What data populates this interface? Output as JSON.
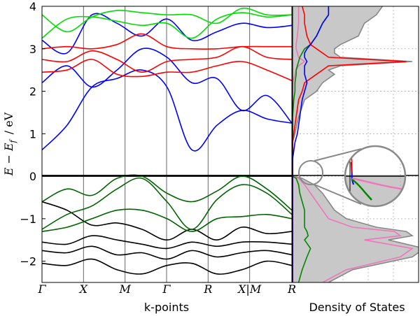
{
  "chart_data": [
    {
      "type": "line",
      "subtype": "band-structure",
      "xlabel": "k-points",
      "ylabel_main": "E − E",
      "ylabel_sub": "f",
      "ylabel_unit": "/  eV",
      "ylim": [
        -2.5,
        4
      ],
      "yticks": [
        -2,
        -1,
        0,
        1,
        2,
        3,
        4
      ],
      "ytick_labels": [
        "−2",
        "−1",
        "0",
        "1",
        "2",
        "3",
        "4"
      ],
      "kpoint_labels": [
        "Γ",
        "X",
        "M",
        "Γ",
        "R",
        "X|M",
        "R"
      ],
      "kpoint_positions": [
        0,
        0.57,
        1.14,
        1.71,
        2.28,
        2.85,
        3.43
      ],
      "series": [
        {
          "name": "conduction-blue",
          "color": "#0000ff",
          "bands": [
            [
              0.62,
              1.2,
              2.1,
              2.3,
              2.5,
              2.1,
              0.62,
              1.2,
              1.55,
              1.35,
              1.25
            ],
            [
              2.2,
              2.6,
              2.1,
              2.5,
              3.0,
              2.8,
              2.2,
              2.3,
              1.55,
              1.9,
              1.25
            ],
            [
              3.2,
              2.9,
              3.8,
              3.6,
              3.3,
              3.7,
              3.2,
              3.4,
              3.6,
              3.5,
              3.55
            ]
          ]
        },
        {
          "name": "conduction-red",
          "color": "#ff0000",
          "bands": [
            [
              2.45,
              2.5,
              2.75,
              2.4,
              2.35,
              2.45,
              2.45,
              2.6,
              2.7,
              2.5,
              2.25
            ],
            [
              2.75,
              2.7,
              2.95,
              2.75,
              2.45,
              2.7,
              2.75,
              2.8,
              3.05,
              2.8,
              2.75
            ],
            [
              3.0,
              3.05,
              3.0,
              3.1,
              3.35,
              3.05,
              3.0,
              3.0,
              3.05,
              3.05,
              3.05
            ]
          ]
        },
        {
          "name": "conduction-green",
          "color": "#00dd00",
          "bands": [
            [
              3.25,
              3.7,
              3.75,
              3.65,
              3.55,
              3.6,
              3.25,
              3.7,
              3.85,
              3.75,
              3.8
            ],
            [
              3.8,
              3.4,
              3.75,
              3.9,
              3.85,
              3.8,
              3.8,
              3.6,
              3.95,
              3.8,
              3.8
            ]
          ]
        },
        {
          "name": "valence-black",
          "color": "#000000",
          "bands": [
            [
              0.0,
              0.0,
              0.0,
              0.0,
              0.0,
              0.0,
              0.0,
              0.0,
              0.0,
              0.0,
              0.0
            ],
            [
              -0.6,
              -0.8,
              -1.15,
              -1.1,
              -1.25,
              -1.5,
              -1.25,
              -1.5,
              -1.2,
              -1.35,
              -1.3
            ],
            [
              -1.55,
              -1.6,
              -1.4,
              -1.5,
              -1.6,
              -1.7,
              -1.55,
              -1.65,
              -1.55,
              -1.55,
              -1.6
            ],
            [
              -1.75,
              -1.8,
              -1.65,
              -1.85,
              -1.8,
              -1.95,
              -1.75,
              -1.9,
              -1.8,
              -1.75,
              -1.85
            ],
            [
              -2.05,
              -2.1,
              -1.95,
              -2.2,
              -2.3,
              -2.1,
              -2.05,
              -2.3,
              -2.2,
              -2.0,
              -2.1
            ]
          ]
        },
        {
          "name": "valence-green",
          "color": "#006400",
          "bands": [
            [
              -0.6,
              -0.3,
              -0.45,
              -0.05,
              0.0,
              -0.4,
              -0.6,
              -0.35,
              0.0,
              -0.3,
              -0.8
            ],
            [
              -1.25,
              -0.9,
              -0.7,
              -0.3,
              -0.05,
              -0.6,
              -1.25,
              -0.55,
              -0.2,
              -0.4,
              -0.9
            ],
            [
              -1.3,
              -1.2,
              -1.0,
              -0.8,
              -0.8,
              -1.0,
              -1.3,
              -1.0,
              -0.95,
              -0.9,
              -1.0
            ]
          ]
        }
      ]
    },
    {
      "type": "area",
      "subtype": "density-of-states",
      "xlabel": "Density of States",
      "ylim": [
        -2.5,
        4
      ],
      "energy": [
        -2.5,
        -2.2,
        -1.9,
        -1.7,
        -1.5,
        -1.4,
        -1.3,
        -1.2,
        -1.0,
        -0.8,
        -0.6,
        -0.4,
        -0.2,
        -0.05,
        0.0,
        0.4,
        0.8,
        1.0,
        1.4,
        1.8,
        2.0,
        2.2,
        2.4,
        2.5,
        2.6,
        2.7,
        2.8,
        2.9,
        3.0,
        3.1,
        3.3,
        3.6,
        3.8,
        4.0
      ],
      "series": [
        {
          "name": "total",
          "color": "#888888",
          "fill": "#c8c8c8",
          "values": [
            0.3,
            0.5,
            1.0,
            1.1,
            0.8,
            1.0,
            0.95,
            0.7,
            0.45,
            0.35,
            0.3,
            0.25,
            0.18,
            0.08,
            0.0,
            0.0,
            0.0,
            0.02,
            0.05,
            0.1,
            0.2,
            0.25,
            0.35,
            0.3,
            0.4,
            1.0,
            0.4,
            0.35,
            0.35,
            0.4,
            0.55,
            0.6,
            0.7,
            0.75
          ]
        },
        {
          "name": "pink",
          "color": "#ee77bb",
          "values": [
            0.25,
            0.45,
            0.9,
            1.0,
            0.6,
            0.9,
            0.85,
            0.5,
            0.3,
            0.25,
            0.2,
            0.15,
            0.1,
            0.05,
            0.0,
            0.0,
            0.0,
            0.0,
            0.0,
            0.0,
            0.0,
            0.0,
            0.02,
            0.03,
            0.05,
            0.1,
            0.05,
            0.04,
            0.03,
            0.03,
            0.04,
            0.05,
            0.05,
            0.05
          ]
        },
        {
          "name": "green",
          "color": "#008800",
          "values": [
            0.05,
            0.08,
            0.12,
            0.15,
            0.1,
            0.13,
            0.12,
            0.1,
            0.1,
            0.1,
            0.08,
            0.06,
            0.05,
            0.03,
            0.0,
            0.0,
            0.0,
            0.0,
            0.0,
            0.01,
            0.02,
            0.02,
            0.03,
            0.03,
            0.04,
            0.05,
            0.06,
            0.08,
            0.1,
            0.15,
            0.2,
            0.25,
            0.3,
            0.3
          ]
        },
        {
          "name": "red",
          "color": "#ff0000",
          "values": [
            0.0,
            0.0,
            0.0,
            0.0,
            0.0,
            0.0,
            0.0,
            0.0,
            0.0,
            0.0,
            0.0,
            0.0,
            0.0,
            0.0,
            0.0,
            0.0,
            0.0,
            0.01,
            0.03,
            0.05,
            0.08,
            0.1,
            0.2,
            0.25,
            0.3,
            0.95,
            0.3,
            0.25,
            0.2,
            0.15,
            0.12,
            0.1,
            0.1,
            0.08
          ]
        },
        {
          "name": "blue",
          "color": "#0000ff",
          "values": [
            0.0,
            0.0,
            0.0,
            0.0,
            0.0,
            0.0,
            0.0,
            0.0,
            0.0,
            0.0,
            0.0,
            0.0,
            0.0,
            0.0,
            0.0,
            0.0,
            0.02,
            0.04,
            0.06,
            0.08,
            0.1,
            0.12,
            0.1,
            0.1,
            0.1,
            0.12,
            0.1,
            0.1,
            0.12,
            0.15,
            0.2,
            0.25,
            0.3,
            0.3
          ]
        }
      ]
    }
  ]
}
